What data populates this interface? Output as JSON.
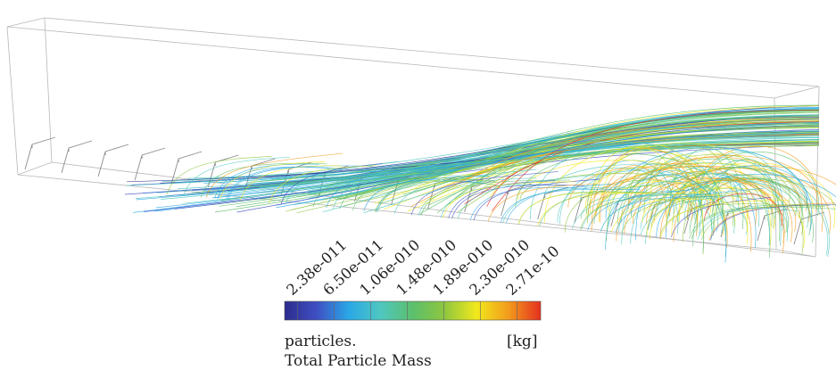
{
  "figure": {
    "colors": {
      "outline": "#b8b8b8",
      "text": "#222222",
      "gradient": [
        "#2c2c8c",
        "#3f4fc3",
        "#2aa7e6",
        "#4fc7c0",
        "#5cbf6c",
        "#8ec63f",
        "#f2e91c",
        "#f29b1c",
        "#e5301e"
      ]
    },
    "legend": {
      "tick_labels": [
        "2.38e-011",
        "6.50e-011",
        "1.06e-010",
        "1.48e-010",
        "1.89e-010",
        "2.30e-010",
        "2.71e-10"
      ],
      "variable_line1": "particles.",
      "variable_line2": "Total Particle Mass",
      "unit": "[kg]"
    }
  }
}
